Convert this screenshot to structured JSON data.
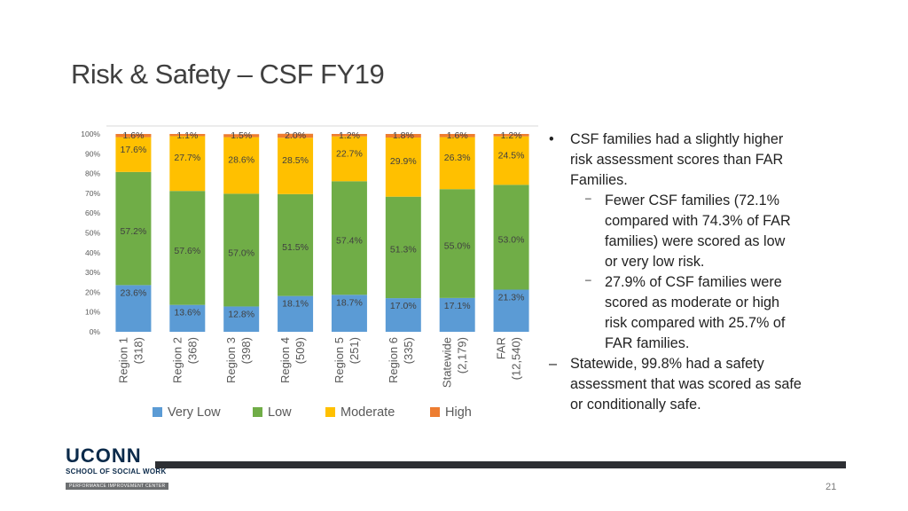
{
  "slide": {
    "title": "Risk & Safety – CSF FY19",
    "page_number": "21"
  },
  "logo": {
    "name": "UCONN",
    "school": "SCHOOL OF SOCIAL WORK",
    "centre": "PERFORMANCE IMPROVEMENT CENTER"
  },
  "bullets": [
    {
      "marker": "•",
      "text": "CSF families had a slightly higher risk assessment scores than FAR Families.",
      "lines": [
        "CSF families had a slightly higher",
        "risk assessment scores than FAR",
        "Families."
      ]
    },
    {
      "marker": "–",
      "sub": true,
      "lines": [
        "Fewer CSF families (72.1%",
        "compared with 74.3% of FAR",
        "families) were scored as low",
        "or very low risk."
      ]
    },
    {
      "marker": "–",
      "sub": true,
      "lines": [
        "27.9% of CSF families were",
        "scored as moderate or high",
        "risk compared with 25.7% of",
        "FAR families."
      ]
    },
    {
      "marker": "–",
      "lines": [
        "Statewide, 99.8% had a safety",
        "assessment that was scored as safe",
        "or conditionally safe."
      ]
    }
  ],
  "chart_data": {
    "type": "bar",
    "stacked": true,
    "orientation": "vertical",
    "categories": [
      "Region 1 (318)",
      "Region 2 (368)",
      "Region 3 (398)",
      "Region 4 (509)",
      "Region 5 (251)",
      "Region 6 (335)",
      "Statewide (2,179)",
      "FAR (12,540)"
    ],
    "category_lines": [
      [
        "Region 1",
        "(318)"
      ],
      [
        "Region 2",
        "(368)"
      ],
      [
        "Region 3",
        "(398)"
      ],
      [
        "Region 4",
        "(509)"
      ],
      [
        "Region 5",
        "(251)"
      ],
      [
        "Region 6",
        "(335)"
      ],
      [
        "Statewide",
        "(2,179)"
      ],
      [
        "FAR",
        "(12,540)"
      ]
    ],
    "series": [
      {
        "name": "Very Low",
        "color": "#5b9bd5",
        "values": [
          23.6,
          13.6,
          12.8,
          18.1,
          18.7,
          17.0,
          17.1,
          21.3
        ],
        "labels": [
          "23.6%",
          "13.6%",
          "12.8%",
          "18.1%",
          "18.7%",
          "17.0%",
          "17.1%",
          "21.3%"
        ]
      },
      {
        "name": "Low",
        "color": "#70ad47",
        "values": [
          57.2,
          57.6,
          57.0,
          51.5,
          57.4,
          51.3,
          55.0,
          53.0
        ],
        "labels": [
          "57.2%",
          "57.6%",
          "57.0%",
          "51.5%",
          "57.4%",
          "51.3%",
          "55.0%",
          "53.0%"
        ]
      },
      {
        "name": "Moderate",
        "color": "#ffc000",
        "values": [
          17.6,
          27.7,
          28.6,
          28.5,
          22.7,
          29.9,
          26.3,
          24.5
        ],
        "labels": [
          "17.6%",
          "27.7%",
          "28.6%",
          "28.5%",
          "22.7%",
          "29.9%",
          "26.3%",
          "24.5%"
        ]
      },
      {
        "name": "High",
        "color": "#ed7d31",
        "values": [
          1.6,
          1.1,
          1.5,
          2.0,
          1.2,
          1.8,
          1.6,
          1.2
        ],
        "labels": [
          "1.6%",
          "1.1%",
          "1.5%",
          "2.0%",
          "1.2%",
          "1.8%",
          "1.6%",
          "1.2%"
        ]
      }
    ],
    "y_ticks": [
      "0%",
      "10%",
      "20%",
      "30%",
      "40%",
      "50%",
      "60%",
      "70%",
      "80%",
      "90%",
      "100%"
    ],
    "ylim": [
      0,
      100
    ],
    "legend_position": "bottom",
    "xlabel": "",
    "ylabel": ""
  }
}
